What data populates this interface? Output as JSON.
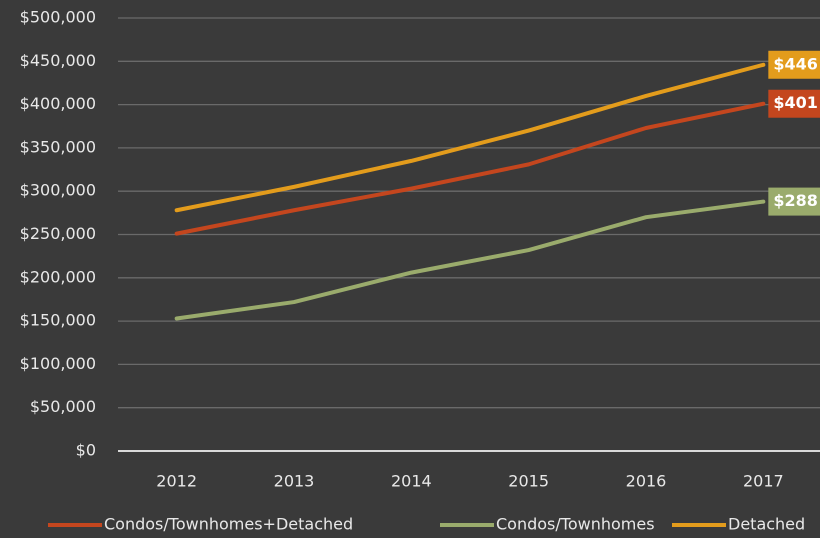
{
  "chart_data": {
    "type": "line",
    "categories": [
      "2012",
      "2013",
      "2014",
      "2015",
      "2016",
      "2017"
    ],
    "series": [
      {
        "name": "Condos/Townhomes+Detached",
        "color": "#c4461e",
        "values": [
          251000,
          278000,
          303000,
          331000,
          373000,
          401000
        ],
        "value_labels": [
          null,
          null,
          null,
          null,
          null,
          "$401"
        ]
      },
      {
        "name": "Condos/Townhomes",
        "color": "#9aab6c",
        "values": [
          153000,
          172000,
          206000,
          232000,
          270000,
          288000
        ],
        "value_labels": [
          null,
          null,
          null,
          null,
          null,
          "$288"
        ]
      },
      {
        "name": "Detached",
        "color": "#e39c1c",
        "values": [
          278000,
          305000,
          335000,
          370000,
          410000,
          446000
        ],
        "value_labels": [
          null,
          null,
          null,
          null,
          null,
          "$446"
        ]
      }
    ],
    "ylim": [
      0,
      500000
    ],
    "yticks": [
      {
        "value": 0,
        "label": "$0"
      },
      {
        "value": 50000,
        "label": "$50,000"
      },
      {
        "value": 100000,
        "label": "$100,000"
      },
      {
        "value": 150000,
        "label": "$150,000"
      },
      {
        "value": 200000,
        "label": "$200,000"
      },
      {
        "value": 250000,
        "label": "$250,000"
      },
      {
        "value": 300000,
        "label": "$300,000"
      },
      {
        "value": 350000,
        "label": "$350,000"
      },
      {
        "value": 400000,
        "label": "$400,000"
      },
      {
        "value": 450000,
        "label": "$450,000"
      },
      {
        "value": 500000,
        "label": "$500,000"
      }
    ],
    "grid": true,
    "legend": "bottom"
  }
}
